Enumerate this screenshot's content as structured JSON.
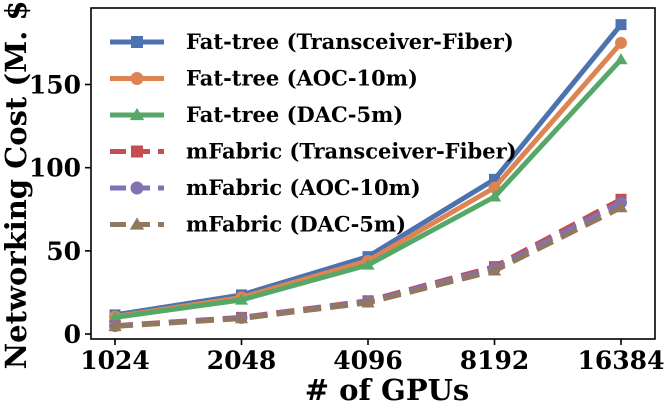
{
  "chart_data": {
    "type": "line",
    "title": "",
    "xlabel": "# of GPUs",
    "ylabel": "Networking Cost (M. $)",
    "categories": [
      "1024",
      "2048",
      "4096",
      "8192",
      "16384"
    ],
    "ylim": [
      -3,
      196
    ],
    "yticks": [
      0,
      50,
      100,
      150
    ],
    "grid": false,
    "legend_position": "top-left",
    "series": [
      {
        "name": "Fat-tree (Transceiver-Fiber)",
        "values": [
          11.5,
          23.5,
          46.5,
          93,
          186
        ],
        "color": "#4c72b0",
        "marker": "square",
        "dashed": false
      },
      {
        "name": "Fat-tree (AOC-10m)",
        "values": [
          10.5,
          22,
          44,
          88,
          175
        ],
        "color": "#dd8452",
        "marker": "circle",
        "dashed": false
      },
      {
        "name": "Fat-tree (DAC-5m)",
        "values": [
          10,
          20.5,
          41.5,
          82.5,
          165
        ],
        "color": "#55a868",
        "marker": "triangle",
        "dashed": false
      },
      {
        "name": "mFabric (Transceiver-Fiber)",
        "values": [
          5,
          10,
          20,
          40.5,
          81
        ],
        "color": "#c44e52",
        "marker": "square",
        "dashed": true
      },
      {
        "name": "mFabric (AOC-10m)",
        "values": [
          4.8,
          9.7,
          19.5,
          39.5,
          79
        ],
        "color": "#8172b3",
        "marker": "circle",
        "dashed": true
      },
      {
        "name": "mFabric (DAC-5m)",
        "values": [
          4.6,
          9.3,
          18.8,
          38,
          76
        ],
        "color": "#937860",
        "marker": "triangle",
        "dashed": true
      }
    ]
  }
}
